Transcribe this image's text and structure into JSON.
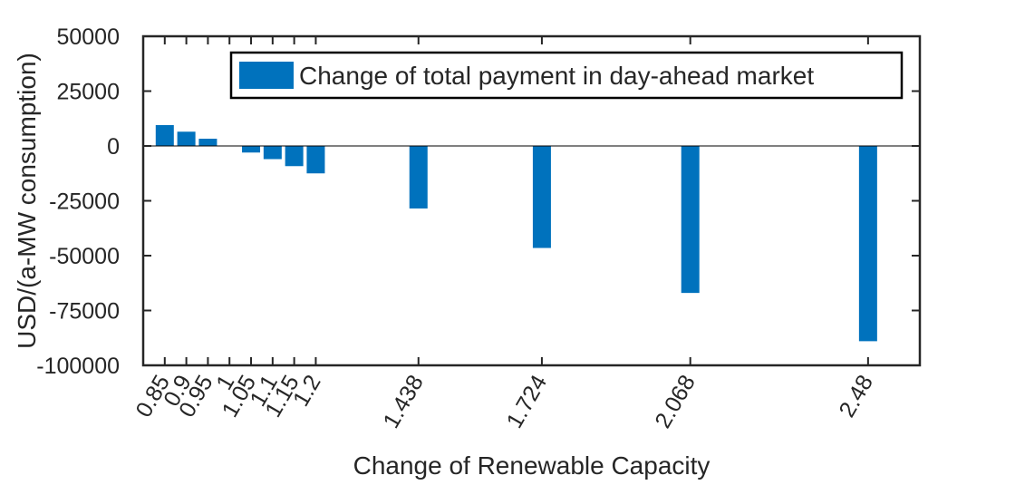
{
  "chart_data": {
    "type": "bar",
    "title": "",
    "xlabel": "Change of Renewable Capacity",
    "ylabel": "USD/(a-MW consumption)",
    "x": [
      0.85,
      0.9,
      0.95,
      1,
      1.05,
      1.1,
      1.15,
      1.2,
      1.438,
      1.724,
      2.068,
      2.48
    ],
    "x_tick_labels": [
      "0.85",
      "0.9",
      "0.95",
      "1",
      "1.05",
      "1.1",
      "1.15",
      "1.2",
      "1.438",
      "1.724",
      "2.068",
      "2.48"
    ],
    "series": [
      {
        "name": "Change of total payment in day-ahead market",
        "color": "#0072BD",
        "values": [
          9500,
          6500,
          3300,
          0,
          -3000,
          -6000,
          -9200,
          -12500,
          -28500,
          -46500,
          -67000,
          -89000
        ]
      }
    ],
    "xlim": [
      0.8,
      2.6
    ],
    "ylim": [
      -100000,
      50000
    ],
    "y_ticks": [
      50000,
      25000,
      0,
      -25000,
      -50000,
      -75000,
      -100000
    ],
    "y_tick_labels": [
      "50000",
      "25000",
      "0",
      "-25000",
      "-50000",
      "-75000",
      "-100000"
    ],
    "legend_position": "top-right",
    "grid": false,
    "zero_line": true,
    "axis_color": "#262626"
  }
}
